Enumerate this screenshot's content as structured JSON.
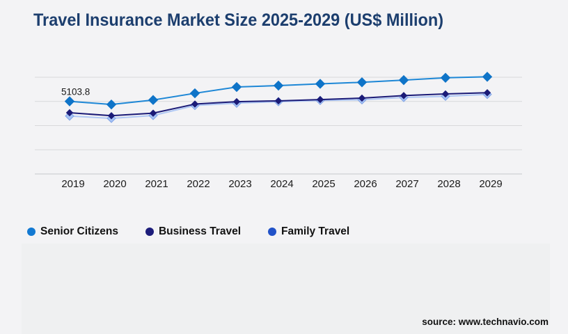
{
  "header": {
    "title": "Travel Insurance Market Size 2025-2029 (US$ Million)"
  },
  "chart_data": {
    "type": "line",
    "title": "Travel Insurance Market Size 2025-2029 (US$ Million)",
    "units": "US$ Million",
    "x": [
      "2019",
      "2020",
      "2021",
      "2022",
      "2023",
      "2024",
      "2025",
      "2026",
      "2027",
      "2028",
      "2029"
    ],
    "series": [
      {
        "name": "Senior Citizens",
        "line_color": "#1d87d6",
        "marker_color": "#0f74c8",
        "marker_stroke": "#0f74c8",
        "values": [
          5103.8,
          4960,
          5165,
          5470,
          5755,
          5820,
          5900,
          5970,
          6070,
          6175,
          6220
        ]
      },
      {
        "name": "Business Travel",
        "line_color": "#1b1b77",
        "marker_color": "#1b1b77",
        "marker_stroke": "#1b1b77",
        "values": [
          4585,
          4450,
          4565,
          4980,
          5090,
          5125,
          5185,
          5250,
          5365,
          5440,
          5495
        ]
      },
      {
        "name": "Family Travel",
        "line_color": "#b0c8f4",
        "marker_color": "#a6c3f5",
        "marker_stroke": "#7fa2e6",
        "values": [
          4435,
          4330,
          4460,
          4915,
          5020,
          5090,
          5145,
          5175,
          5280,
          5335,
          5420
        ]
      }
    ],
    "ylim": [
      1800,
      6200
    ],
    "grid": true,
    "gridline_count": 5,
    "y_axis_labels_visible": false,
    "legend_position": "bottom",
    "annotations": [
      {
        "text": "5103.8",
        "series": "Senior Citizens",
        "x": "2019"
      }
    ]
  },
  "legend": {
    "items": [
      {
        "label": "Senior Citizens",
        "color": "#1279d2"
      },
      {
        "label": "Business Travel",
        "color": "#1c1c7a"
      },
      {
        "label": "Family Travel",
        "color": "#2152c8"
      }
    ]
  },
  "footer": {
    "source_label": "source: www.technavio.com"
  }
}
